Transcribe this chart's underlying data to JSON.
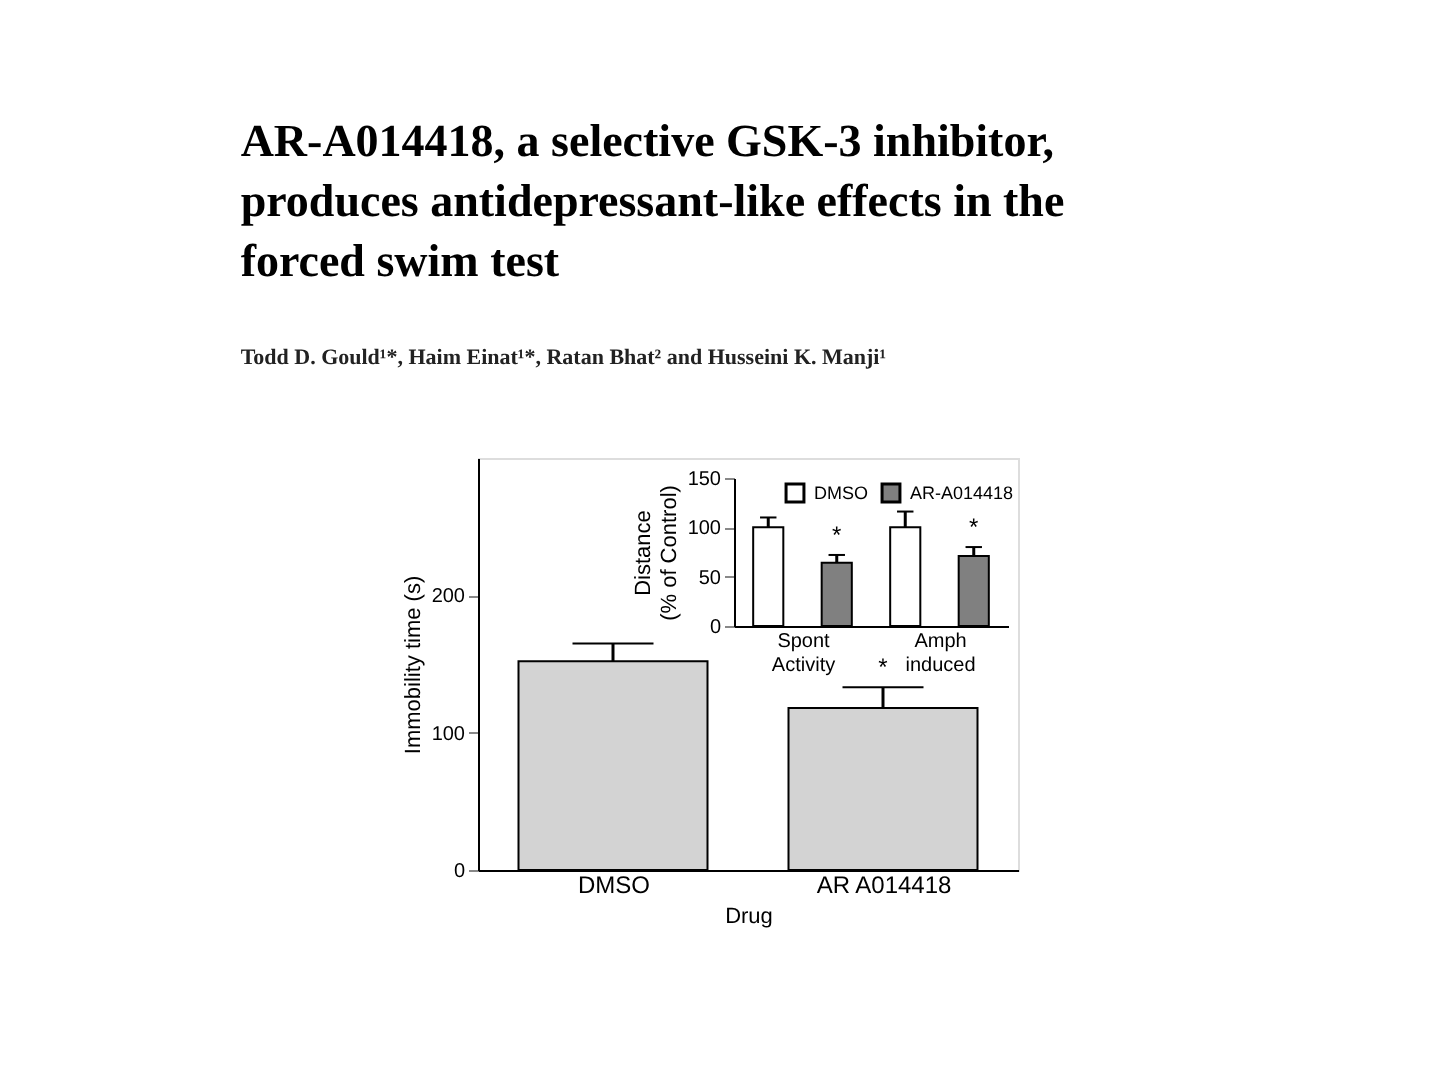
{
  "chart_data": [
    {
      "type": "bar",
      "title": "AR-A014418, a selective GSK-3 inhibitor,\nproduces antidepressant-like effects in the\nforced swim test",
      "subtitle": "Todd D. Gould¹*, Haim Einat¹*, Ratan Bhat² and Husseini K. Manji¹",
      "categories": [
        "DMSO",
        "AR A014418"
      ],
      "values": [
        152,
        118
      ],
      "errors": [
        [
          152,
          165
        ],
        [
          118,
          133
        ]
      ],
      "color": "#d3d3d3",
      "xlabel": "Drug",
      "ylabel": "Immobility time (s)",
      "ylim": [
        0,
        300
      ],
      "yticks": [
        0,
        100,
        200
      ],
      "grid": false,
      "annotations": [
        "*"
      ]
    },
    {
      "type": "bar",
      "categories": [
        "Spont Activity",
        "Amph induced"
      ],
      "ylabel": "Distance\n(% of Control)",
      "ylim": [
        0,
        150
      ],
      "yticks": [
        0,
        50,
        100,
        150
      ],
      "grid": false,
      "legend": "top right",
      "series": [
        {
          "name": "DMSO",
          "color": "#ffffff",
          "values": [
            100,
            100
          ],
          "errors": [
            [
              100,
              110
            ],
            [
              100,
              116
            ]
          ]
        },
        {
          "name": "AR-A014418",
          "color": "#808080",
          "values": [
            64,
            71
          ],
          "errors": [
            [
              64,
              72
            ],
            [
              71,
              80
            ]
          ]
        }
      ],
      "annotations": [
        "*",
        "*"
      ]
    }
  ]
}
